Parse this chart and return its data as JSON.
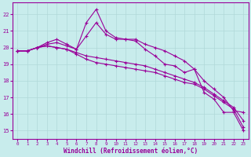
{
  "x_ticks": [
    0,
    1,
    2,
    3,
    4,
    5,
    6,
    7,
    8,
    9,
    10,
    11,
    12,
    13,
    14,
    15,
    16,
    17,
    18,
    19,
    20,
    21,
    22,
    23
  ],
  "xlabel": "Windchill (Refroidissement éolien,°C)",
  "ylabel_ticks": [
    15,
    16,
    17,
    18,
    19,
    20,
    21,
    22
  ],
  "ylim": [
    14.5,
    22.7
  ],
  "xlim": [
    -0.5,
    23.5
  ],
  "bg_color": "#c8ecec",
  "grid_color": "#b0d8d8",
  "line_color": "#990099",
  "curve1": [
    19.8,
    19.8,
    20.0,
    20.3,
    20.5,
    20.2,
    19.9,
    21.5,
    22.3,
    21.0,
    20.6,
    20.5,
    20.4,
    19.9,
    19.5,
    19.0,
    18.9,
    18.5,
    18.7,
    17.3,
    16.9,
    16.1,
    16.1,
    15.0
  ],
  "curve2": [
    19.8,
    19.8,
    20.0,
    20.2,
    20.3,
    20.1,
    19.9,
    20.7,
    21.5,
    20.8,
    20.5,
    20.5,
    20.5,
    20.2,
    20.0,
    19.8,
    19.5,
    19.2,
    18.7,
    18.0,
    17.5,
    17.0,
    16.2,
    16.1
  ],
  "curve3": [
    19.8,
    19.8,
    20.0,
    20.1,
    20.0,
    19.9,
    19.7,
    19.5,
    19.4,
    19.3,
    19.2,
    19.1,
    19.0,
    18.9,
    18.7,
    18.5,
    18.3,
    18.1,
    17.9,
    17.6,
    17.2,
    16.8,
    16.4,
    15.6
  ],
  "curve4": [
    19.8,
    19.8,
    20.0,
    20.1,
    20.0,
    19.9,
    19.6,
    19.3,
    19.1,
    19.0,
    18.9,
    18.8,
    18.7,
    18.6,
    18.5,
    18.3,
    18.1,
    17.9,
    17.8,
    17.5,
    17.1,
    16.7,
    16.3,
    15.2
  ]
}
